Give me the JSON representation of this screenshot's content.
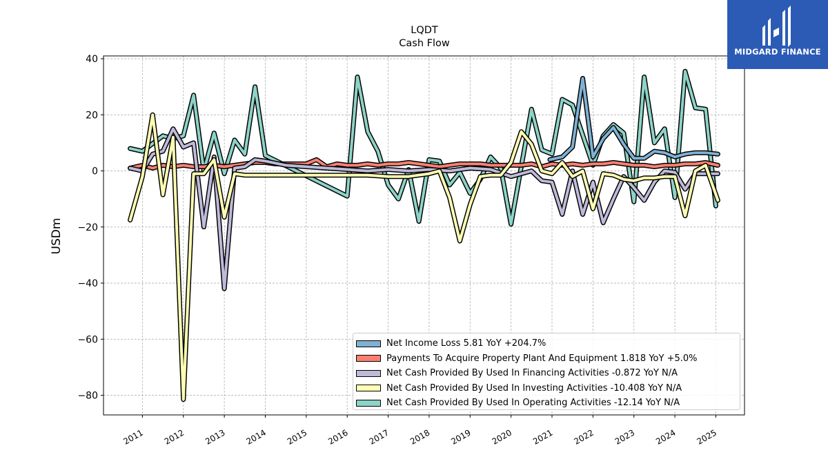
{
  "logo": {
    "text": "MIDGARD FINANCE",
    "icon": "midgard-logo-icon",
    "bg_color": "#2b5bb5"
  },
  "chart_data": {
    "type": "line",
    "title": "LQDT",
    "subtitle": "Cash Flow",
    "xlabel": "",
    "ylabel": "USDm",
    "xlim": [
      2010.05,
      2025.7
    ],
    "ylim": [
      -87,
      41
    ],
    "yticks": [
      40,
      20,
      0,
      -20,
      -40,
      -60,
      -80
    ],
    "yticklabels": [
      "40",
      "20",
      "0",
      "−20",
      "−40",
      "−60",
      "−80"
    ],
    "xticks": [
      2011,
      2012,
      2013,
      2014,
      2015,
      2016,
      2017,
      2018,
      2019,
      2020,
      2021,
      2022,
      2023,
      2024,
      2025
    ],
    "xticklabels": [
      "2011",
      "2012",
      "2013",
      "2014",
      "2015",
      "2016",
      "2017",
      "2018",
      "2019",
      "2020",
      "2021",
      "2022",
      "2023",
      "2024",
      "2025"
    ],
    "grid": true,
    "legend_position": "lower-right",
    "series": [
      {
        "name": "Operating",
        "color": "#8dd3c7",
        "legend_label": "Net Cash Provided By Used In Operating Activities  -12.14 YoY N/A",
        "x": [
          2010.7,
          2011.0,
          2011.5,
          2011.75,
          2012.0,
          2012.25,
          2012.5,
          2012.75,
          2013.0,
          2013.25,
          2013.5,
          2013.75,
          2014.0,
          2016.0,
          2016.25,
          2016.5,
          2016.75,
          2017.0,
          2017.25,
          2017.5,
          2017.75,
          2018.0,
          2018.25,
          2018.5,
          2018.75,
          2019.0,
          2019.25,
          2019.5,
          2019.75,
          2020.0,
          2020.5,
          2020.75,
          2021.0,
          2021.25,
          2021.5,
          2022.0,
          2022.25,
          2022.5,
          2022.75,
          2023.0,
          2023.25,
          2023.5,
          2023.75,
          2024.0,
          2024.25,
          2024.5,
          2024.75,
          2025.0
        ],
        "y": [
          8,
          7,
          12.5,
          11.5,
          12.5,
          27,
          0,
          13.5,
          -1,
          11,
          6,
          30,
          5.5,
          -9,
          33.5,
          14,
          7,
          -5,
          -10,
          0.5,
          -18,
          4,
          3.5,
          -5,
          -0.5,
          -8,
          -3,
          5,
          1,
          -19,
          22,
          7.5,
          6,
          25.5,
          23.5,
          2,
          12.5,
          16.5,
          13.5,
          -11,
          33.5,
          10,
          15,
          -9.5,
          35.5,
          22.5,
          22,
          -12.5
        ]
      },
      {
        "name": "Net Income",
        "color": "#80b1d3",
        "legend_label": "Net Income Loss  5.81 YoY +204.7%",
        "x": [
          2020.95,
          2021.25,
          2021.5,
          2021.75,
          2022.0,
          2022.25,
          2022.5,
          2022.75,
          2023.0,
          2023.25,
          2023.5,
          2023.75,
          2024.0,
          2024.25,
          2024.5,
          2024.75,
          2025.05
        ],
        "y": [
          4,
          5,
          8.5,
          33,
          5,
          11.5,
          15.5,
          9.5,
          4.5,
          4.5,
          7,
          6.5,
          5,
          6,
          6.5,
          6.5,
          6
        ]
      },
      {
        "name": "Capex",
        "color": "#fb8072",
        "legend_label": "Payments To Acquire Property Plant And Equipment  1.818 YoY +5.0%",
        "x": [
          2010.7,
          2011.0,
          2011.25,
          2011.5,
          2011.75,
          2012.0,
          2012.25,
          2012.5,
          2012.75,
          2013.0,
          2013.25,
          2013.5,
          2013.75,
          2014.0,
          2014.25,
          2014.5,
          2014.75,
          2015.0,
          2015.25,
          2015.5,
          2015.75,
          2016.0,
          2016.25,
          2016.5,
          2016.75,
          2017.0,
          2017.25,
          2017.5,
          2017.75,
          2018.0,
          2018.25,
          2018.5,
          2018.75,
          2019.0,
          2019.25,
          2019.5,
          2019.75,
          2020.0,
          2020.25,
          2020.5,
          2020.75,
          2021.0,
          2021.25,
          2021.5,
          2021.75,
          2022.0,
          2022.25,
          2022.5,
          2022.75,
          2023.0,
          2023.25,
          2023.5,
          2023.75,
          2024.0,
          2024.25,
          2024.5,
          2024.75,
          2025.05
        ],
        "y": [
          1,
          2,
          1,
          2,
          1.5,
          2,
          1.5,
          1.5,
          2,
          1.5,
          2,
          2.5,
          3,
          3,
          2.5,
          2.5,
          2.5,
          2.5,
          4,
          1.5,
          2.5,
          2,
          2,
          2.5,
          2,
          2.5,
          2.5,
          3,
          2.5,
          2,
          1.5,
          2,
          2.5,
          2.5,
          2.5,
          2,
          2,
          2,
          2,
          2.5,
          1.5,
          2.5,
          2,
          2.5,
          2,
          2.5,
          2.5,
          3,
          2.5,
          2,
          2,
          1.5,
          2,
          2,
          2.5,
          2.5,
          3,
          2
        ]
      },
      {
        "name": "Financing",
        "color": "#bebada",
        "legend_label": "Net Cash Provided By Used In Financing Activities  -0.872 YoY N/A",
        "x": [
          2010.7,
          2011.0,
          2011.25,
          2011.5,
          2011.75,
          2012.0,
          2012.25,
          2012.5,
          2012.75,
          2013.0,
          2013.25,
          2013.5,
          2013.75,
          2014.0,
          2014.5,
          2015.0,
          2015.5,
          2016.0,
          2016.5,
          2017.0,
          2017.5,
          2018.0,
          2018.5,
          2019.0,
          2019.5,
          2020.0,
          2020.25,
          2020.5,
          2020.75,
          2021.0,
          2021.25,
          2021.5,
          2021.75,
          2022.0,
          2022.25,
          2022.5,
          2022.75,
          2023.0,
          2023.25,
          2023.5,
          2023.75,
          2024.0,
          2024.25,
          2024.5,
          2024.75,
          2025.05
        ],
        "y": [
          1,
          0,
          6,
          7,
          15,
          8.5,
          10,
          -20,
          5,
          -42,
          1,
          1.5,
          4,
          3.5,
          2,
          1.5,
          1,
          0.5,
          0,
          0.5,
          0,
          0.5,
          0,
          1,
          0.5,
          -2,
          -1,
          0,
          -3.5,
          -4,
          -15.5,
          0,
          -15.5,
          -4,
          -18.5,
          -10,
          -2,
          -6,
          -10.5,
          -4,
          0,
          -0.5,
          -6.5,
          -1,
          -1,
          -1
        ]
      },
      {
        "name": "Investing",
        "color": "#ffffb3",
        "legend_label": "Net Cash Provided By Used In Investing Activities  -10.408 YoY N/A",
        "x": [
          2010.7,
          2011.0,
          2011.25,
          2011.5,
          2011.75,
          2012.0,
          2012.25,
          2012.5,
          2012.75,
          2013.0,
          2013.25,
          2013.5,
          2014.0,
          2015.0,
          2016.0,
          2016.5,
          2017.0,
          2017.5,
          2018.0,
          2018.25,
          2018.5,
          2018.75,
          2019.0,
          2019.25,
          2019.5,
          2019.75,
          2020.0,
          2020.25,
          2020.5,
          2020.75,
          2021.0,
          2021.25,
          2021.5,
          2021.75,
          2022.0,
          2022.25,
          2022.5,
          2022.75,
          2023.0,
          2023.25,
          2023.5,
          2023.75,
          2024.0,
          2024.25,
          2024.5,
          2024.75,
          2025.05
        ],
        "y": [
          -17.5,
          -2,
          20,
          -8.5,
          12,
          -81.5,
          -1,
          -1,
          4,
          -16.5,
          -1,
          -1.5,
          -1.5,
          -1.5,
          -1.5,
          -1.5,
          -2,
          -2,
          -1,
          0,
          -9.5,
          -25,
          -12,
          -2,
          -1.5,
          -1.5,
          3,
          14,
          9.5,
          0,
          -1,
          3,
          -2,
          0,
          -13.5,
          -1,
          -1.5,
          -3,
          -3.5,
          -2.5,
          -2.5,
          -2,
          -2,
          -16,
          0,
          2,
          -10.5
        ]
      }
    ]
  }
}
